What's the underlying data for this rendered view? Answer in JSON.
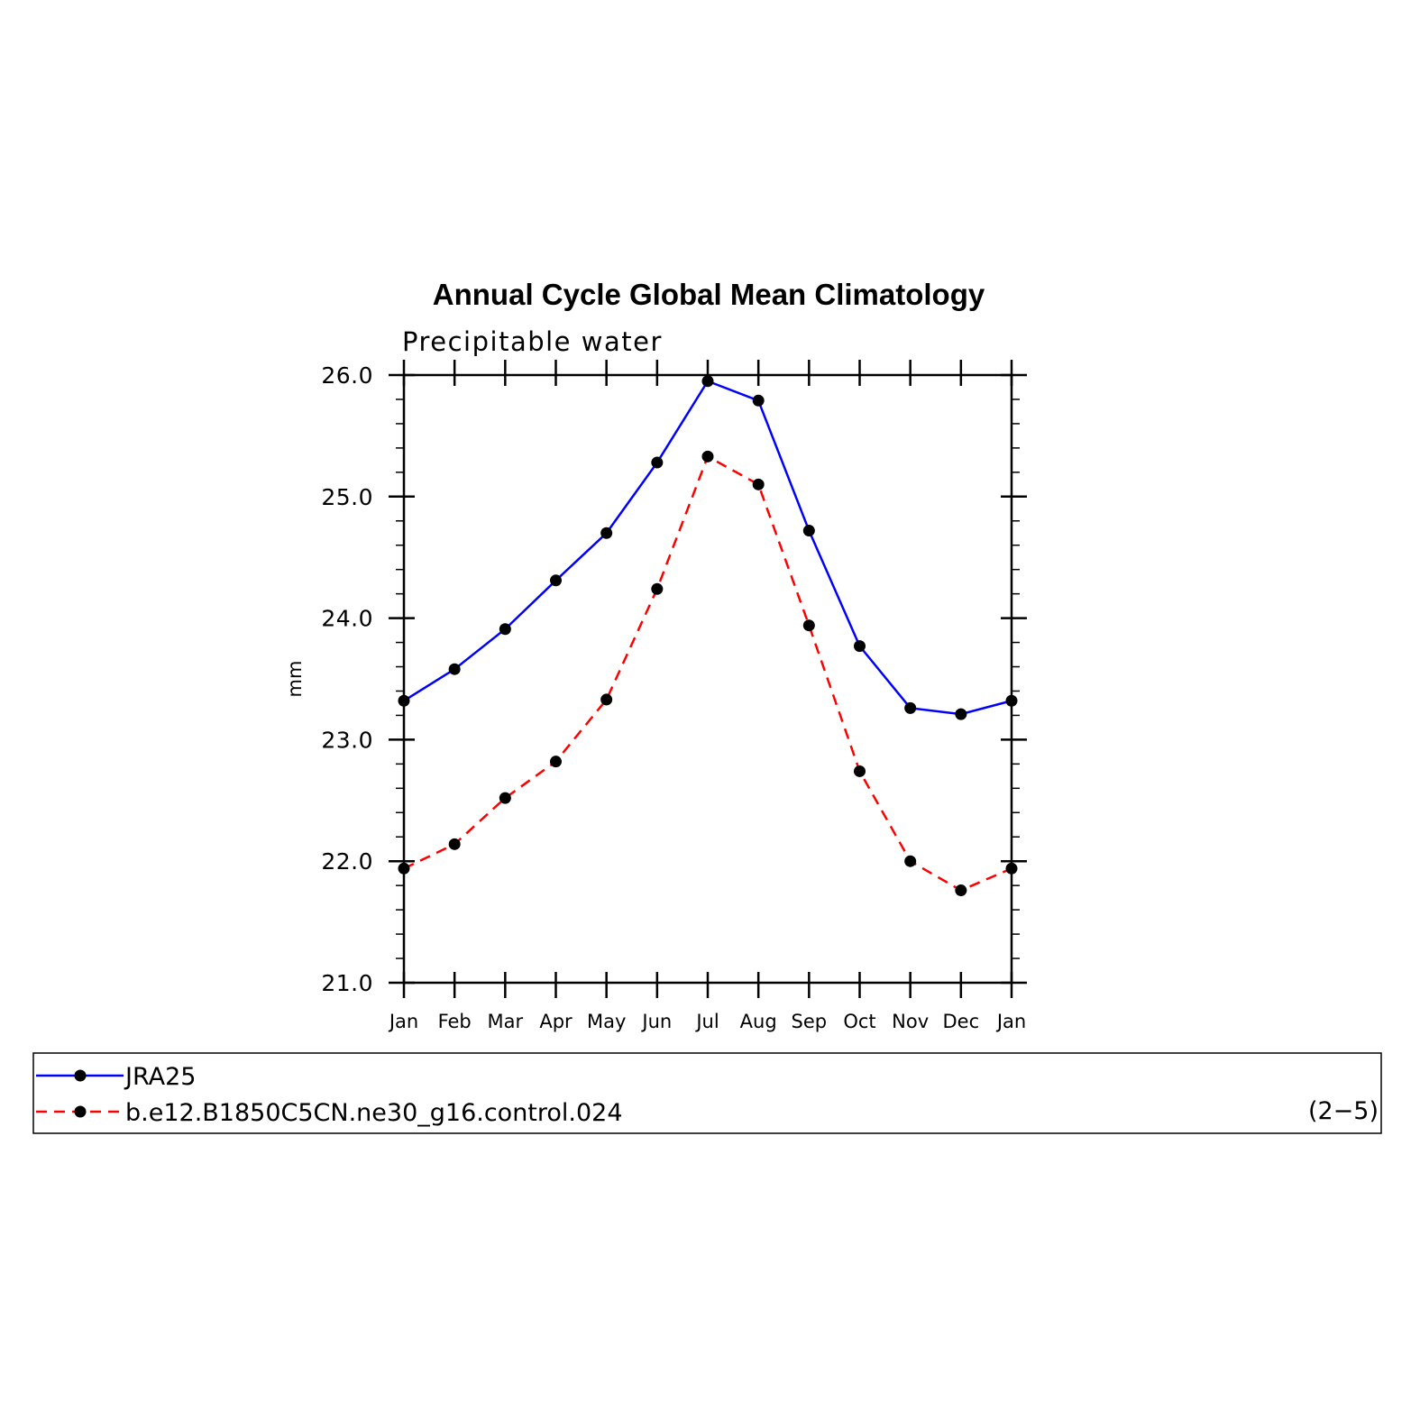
{
  "chart_data": {
    "type": "line",
    "title": "Annual Cycle Global Mean Climatology",
    "subtitle": "Precipitable water",
    "ylabel": "mm",
    "xlabel": "",
    "categories": [
      "Jan",
      "Feb",
      "Mar",
      "Apr",
      "May",
      "Jun",
      "Jul",
      "Aug",
      "Sep",
      "Oct",
      "Nov",
      "Dec",
      "Jan"
    ],
    "ylim": [
      21.0,
      26.0
    ],
    "yticks": [
      "21.0",
      "22.0",
      "23.0",
      "24.0",
      "25.0",
      "26.0"
    ],
    "grid": false,
    "legend_position": "bottom",
    "panel_tag": "(2−5)",
    "series": [
      {
        "name": "JRA25",
        "color": "#0000ff",
        "style": "solid",
        "values": [
          23.32,
          23.58,
          23.91,
          24.31,
          24.7,
          25.28,
          25.95,
          25.79,
          24.72,
          23.77,
          23.26,
          23.21,
          23.32
        ]
      },
      {
        "name": "b.e12.B1850C5CN.ne30_g16.control.024",
        "color": "#ff0000",
        "style": "dashed",
        "values": [
          21.94,
          22.14,
          22.52,
          22.82,
          23.33,
          24.24,
          25.33,
          25.1,
          23.94,
          22.74,
          22.0,
          21.76,
          21.94
        ]
      }
    ]
  }
}
